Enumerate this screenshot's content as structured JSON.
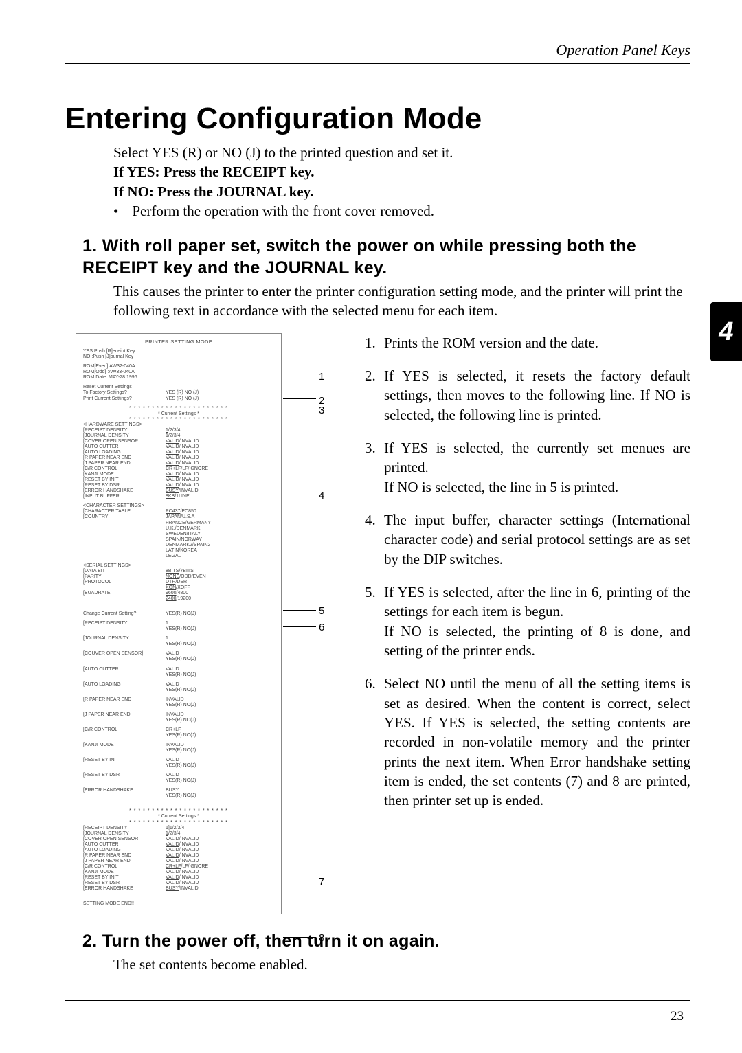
{
  "header": {
    "section": "Operation Panel Keys"
  },
  "title": "Entering Configuration Mode",
  "intro": {
    "line1": "Select YES (R) or NO (J) to the printed question and set it.",
    "line2": "If YES: Press the RECEIPT key.",
    "line3": "If NO: Press the JOURNAL key.",
    "bullet": "Perform the operation with the front cover removed."
  },
  "step1": {
    "head": "1. With roll paper set, switch the power on while pressing both the RECEIPT key and the JOURNAL key.",
    "body": "This causes the printer to enter the printer configuration setting mode, and the printer will print the following text in accordance with the selected menu for each item."
  },
  "notes": [
    {
      "n": "1.",
      "t": "Prints the ROM version and the date."
    },
    {
      "n": "2.",
      "t": "If YES is selected, it resets the factory default settings, then moves to the following line.  If NO is selected, the following line is printed."
    },
    {
      "n": "3.",
      "t": "If YES is selected, the currently set menues are printed.\nIf NO is selected, the line in 5 is printed."
    },
    {
      "n": "4.",
      "t": "The input buffer, character settings (International character code) and serial protocol settings are as set by the DIP switches."
    },
    {
      "n": "5.",
      "t": "If YES is selected, after the line in 6, printing of the settings for each item is begun.\nIf NO is selected, the printing of 8 is done, and setting of the printer ends."
    },
    {
      "n": "6.",
      "t": "Select NO until the menu of all the setting items is set as desired.  When the content is correct, select YES.  If YES is selected, the setting contents are recorded in non-volatile memory and the printer prints the next item. When Error handshake setting item is ended, the set contents (7) and 8 are printed, then printer set up is ended."
    }
  ],
  "step2": {
    "head": "2. Turn the power off, then turn it on again.",
    "body": "The set contents become enabled."
  },
  "pagenum": "23",
  "sidetab": "4",
  "printout": {
    "title": "PRINTER SETTING MODE",
    "keys": [
      "YES:Push [R]eceipt Key",
      "NO :Push [J]ournal Key"
    ],
    "rom": [
      "ROM[Even]:AW32-040A",
      "ROM[Odd] :AW33-040A",
      "ROM Date :MAY-28 1996"
    ],
    "reset": {
      "l1": "Reset Current Settings",
      "l2l": "To Factory Settings?",
      "l2r": "YES (R) NO (J)",
      "l3l": "Print Current Settings?",
      "l3r": "YES (R) NO (J)"
    },
    "curset": "Current Settings",
    "hw_head": "<HARDWARE SETTINGS>",
    "hw": [
      [
        "[RECEIPT DENSITY",
        "1/2/3/4"
      ],
      [
        "[JOURNAL DENSITY",
        "1/2/3/4"
      ],
      [
        "[COVER OPEN SENSOR",
        "VALID/INVALID"
      ],
      [
        "[AUTO CUTTER",
        "VALID/INVALID"
      ],
      [
        "[AUTO LOADING",
        "VALID/INVALID"
      ],
      [
        "[R PAPER NEAR END",
        "VALID/INVALID"
      ],
      [
        "[J PAPER NEAR END",
        "VALID/INVALID"
      ],
      [
        "[C/R CONTROL",
        "CR+LF/LF/IGNORE"
      ],
      [
        "[KANJI MODE",
        "VALID/INVALID"
      ],
      [
        "[RESET BY INIT",
        "VALID/INVALID"
      ],
      [
        "[RESET BY DSR",
        "VALID/INVALID"
      ],
      [
        "[ERROR HANDSHAKE",
        "BUSY/INVALID"
      ],
      [
        "[INPUT BUFFER",
        "8KB/1LINE"
      ]
    ],
    "ch_head": "<CHARACTER SETTINGS>",
    "ch": [
      [
        "[CHARACTER TABLE",
        "PC437/PC850"
      ],
      [
        "[COUNTRY",
        "JAPAN/U.S.A"
      ]
    ],
    "countries": [
      "FRANCE/GERMANY",
      "U.K./DENMARK",
      "SWEDEN/ITALY",
      "SPAIN/NORWAY",
      "DENMARK2/SPAIN2",
      "LATIN/KOREA",
      "LEGAL"
    ],
    "se_head": "<SERIAL SETTINGS>",
    "se": [
      [
        "[DATA BIT",
        "8BITS/7BITS"
      ],
      [
        "[PARITY",
        "NONE/ODD/EVEN"
      ],
      [
        "[PROTOCOL",
        "DTR/DSR"
      ],
      [
        "",
        "XON/XOFF"
      ],
      [
        "[BUADRATE",
        "9600/4800"
      ],
      [
        "",
        "2400/19200"
      ]
    ],
    "chg": [
      "Change Current Setting?",
      "YES(R) NO(J)"
    ],
    "settings_q": [
      [
        "[RECEIPT DENSITY",
        "1",
        "YES(R) NO(J)"
      ],
      [
        "[JOURNAL DENSITY",
        "1",
        "YES(R) NO(J)"
      ],
      [
        "[COUVER OPEN SENSOR]",
        "VALID",
        "YES(R) NO(J)"
      ],
      [
        "[AUTO CUTTER",
        "VALID",
        "YES(R) NO(J)"
      ],
      [
        "[AUTO LOADING",
        "VALID",
        "YES(R) NO(J)"
      ],
      [
        "[R PAPER NEAR END",
        "INVALID",
        "YES(R) NO(J)"
      ],
      [
        "[J PAPER NEAR END",
        "INVALID",
        "YES(R) NO(J)"
      ],
      [
        "[C/R CONTROL",
        "CR+LF",
        "YES(R) NO(J)"
      ],
      [
        "[KANJI MODE",
        "INVALID",
        "YES(R) NO(J)"
      ],
      [
        "[RESET BY INIT",
        "VALID",
        "YES(R) NO(J)"
      ],
      [
        "[RESET BY DSR",
        "VALID",
        "YES(R) NO(J)"
      ],
      [
        "[ERROR HANDSHAKE",
        "BUSY",
        "YES(R) NO(J)"
      ]
    ],
    "hw2": [
      [
        "[RECEIPT DENSITY",
        "1]1/2/3/4"
      ],
      [
        "[JOURNAL DENSITY",
        "1/2/3/4"
      ],
      [
        "[COVER OPEN SENSOR",
        "VALID/INVALID"
      ],
      [
        "[AUTO CUTTER",
        "VALID/INVALID"
      ],
      [
        "[AUTO LOADING",
        "VALID/INVALID"
      ],
      [
        "[R PAPER NEAR END",
        "VALID/INVALID"
      ],
      [
        "[J PAPER NEAR END",
        "VALID/INVALID"
      ],
      [
        "[C/R CONTROL",
        "CR+LF/LF/IGNORE"
      ],
      [
        "[KANJI MODE",
        "VALID/INVALID"
      ],
      [
        "[RESET BY INIT",
        "VALID/INVALID"
      ],
      [
        "[RESET BY DSR",
        "VALID/INVALID"
      ],
      [
        "[ERROR HANDSHAKE",
        "BUSY/INVALID"
      ]
    ],
    "end": "SETTING MODE END!!",
    "callouts": [
      "1",
      "2",
      "3",
      "4",
      "5",
      "6",
      "7",
      "8"
    ]
  }
}
